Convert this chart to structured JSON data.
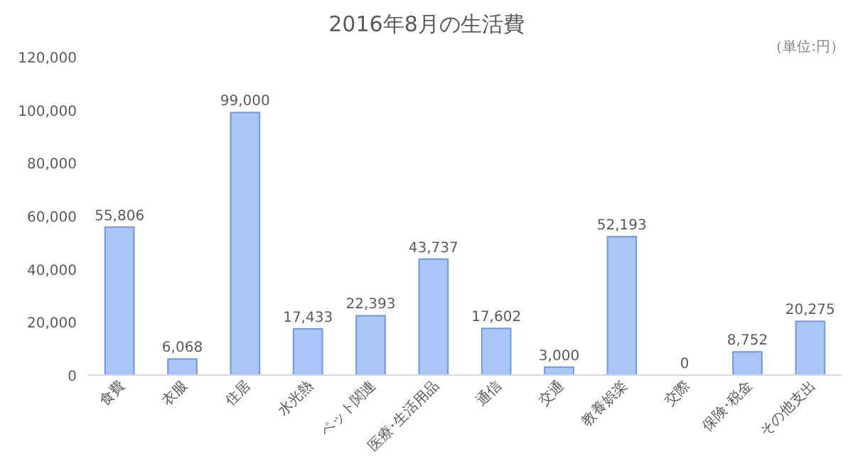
{
  "chart_data": {
    "type": "bar",
    "title": "2016年8月の生活費",
    "annotations": [
      "（単位:円）"
    ],
    "categories": [
      "食費",
      "衣服",
      "住居",
      "水光熱",
      "ペット関連",
      "医療･生活用品",
      "通信",
      "交通",
      "教養娯楽",
      "交際",
      "保険･税金",
      "その他支出"
    ],
    "values": [
      55806,
      6068,
      99000,
      17433,
      22393,
      43737,
      17602,
      3000,
      52193,
      0,
      8752,
      20275
    ],
    "value_labels": [
      "55,806",
      "6,068",
      "99,000",
      "17,433",
      "22,393",
      "43,737",
      "17,602",
      "3,000",
      "52,193",
      "0",
      "8,752",
      "20,275"
    ],
    "color": "#a9c6f7",
    "ylim": [
      0,
      120000
    ],
    "yticks": [
      {
        "value": 0,
        "label": "0"
      },
      {
        "value": 20000,
        "label": "20,000"
      },
      {
        "value": 40000,
        "label": "40,000"
      },
      {
        "value": 60000,
        "label": "60,000"
      },
      {
        "value": 80000,
        "label": "80,000"
      },
      {
        "value": 100000,
        "label": "100,000"
      },
      {
        "value": 120000,
        "label": "120,000"
      }
    ],
    "grid": false
  }
}
